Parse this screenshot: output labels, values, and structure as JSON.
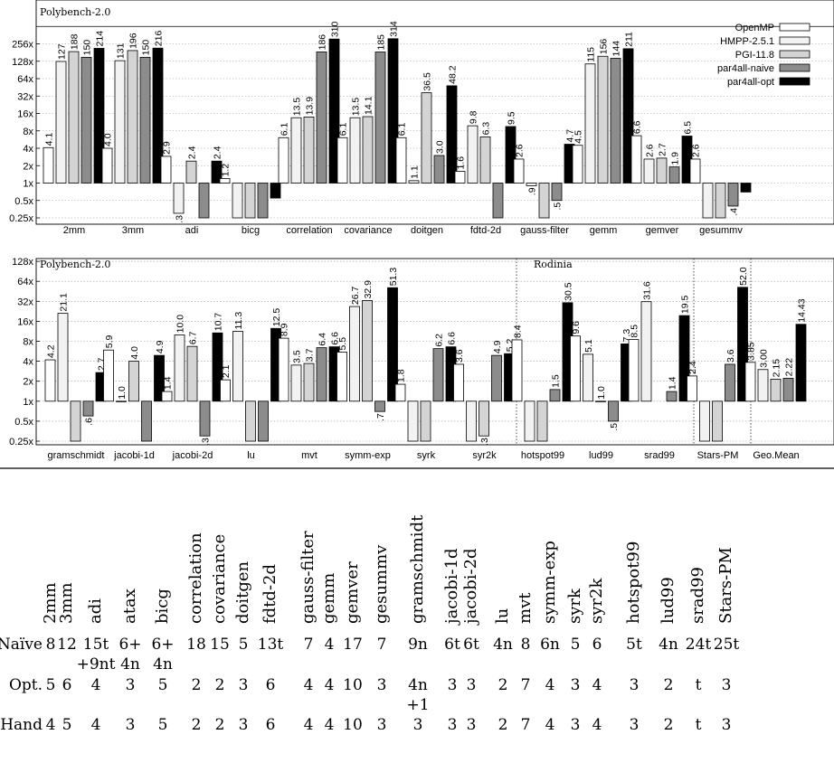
{
  "chart_data": [
    {
      "type": "bar",
      "panel_label": "Polybench-2.0",
      "y_scale": "log2",
      "ylim": [
        0.25,
        512
      ],
      "y_ticks": [
        "0.25x",
        "0.5x",
        "1x",
        "2x",
        "4x",
        "8x",
        "16x",
        "32x",
        "64x",
        "128x",
        "256x"
      ],
      "legend_position": "top-right",
      "categories": [
        "2mm",
        "3mm",
        "adi",
        "bicg",
        "correlation",
        "covariance",
        "doitgen",
        "fdtd-2d",
        "gauss-filter",
        "gemm",
        "gemver",
        "gesummv"
      ],
      "series": [
        {
          "name": "OpenMP",
          "fill": "#ffffff",
          "values": [
            4.1,
            4.0,
            2.9,
            1.2,
            6.1,
            6.1,
            6.1,
            1.6,
            2.6,
            4.5,
            6.6,
            2.6
          ],
          "labels": [
            "4.1",
            "4.0",
            "2.9",
            "1.2",
            "6.1",
            "6.1",
            "6.1",
            "1.6",
            "2.6",
            "4.5",
            "6.6",
            "2.6"
          ]
        },
        {
          "name": "HMPP-2.5.1",
          "fill": "#f2f2f2",
          "values": [
            127,
            131,
            0.3,
            0.25,
            13.5,
            13.5,
            1.1,
            9.8,
            0.9,
            115,
            2.6,
            0.25
          ],
          "labels": [
            "127",
            "131",
            ".3",
            "",
            "13.5",
            "13.5",
            "1.1",
            "9.8",
            ".9",
            "115",
            "2.6",
            ""
          ]
        },
        {
          "name": "PGI-11.8",
          "fill": "#d4d4d4",
          "values": [
            188,
            196,
            2.4,
            0.25,
            13.9,
            14.1,
            36.5,
            6.3,
            0.25,
            156,
            2.7,
            0.25
          ],
          "labels": [
            "188",
            "196",
            "2.4",
            "",
            "13.9",
            "14.1",
            "36.5",
            "6.3",
            "",
            "156",
            "2.7",
            ""
          ]
        },
        {
          "name": "par4all-naive",
          "fill": "#8c8c8c",
          "values": [
            150,
            150,
            0.25,
            0.25,
            186,
            185,
            3.0,
            0.25,
            0.5,
            144,
            1.9,
            0.4
          ],
          "labels": [
            "150",
            "150",
            "",
            "",
            "186",
            "185",
            "3.0",
            "",
            ".5",
            "144",
            "1.9",
            ".4"
          ]
        },
        {
          "name": "par4all-opt",
          "fill": "#000000",
          "values": [
            214,
            216,
            2.4,
            0.55,
            310,
            314,
            48.2,
            9.5,
            4.7,
            211,
            6.5,
            0.7
          ],
          "labels": [
            "214",
            "216",
            "2.4",
            "",
            "310",
            "314",
            "48.2",
            "9.5",
            "4.7",
            "211",
            "6.5",
            ""
          ]
        }
      ]
    },
    {
      "type": "bar",
      "panel_labels": [
        "Polybench-2.0",
        "Rodinia"
      ],
      "y_scale": "log2",
      "ylim": [
        0.25,
        128
      ],
      "y_ticks": [
        "0.25x",
        "0.5x",
        "1x",
        "2x",
        "4x",
        "8x",
        "16x",
        "32x",
        "64x",
        "128x"
      ],
      "categories": [
        "gramschmidt",
        "jacobi-1d",
        "jacobi-2d",
        "lu",
        "mvt",
        "symm-exp",
        "syrk",
        "syr2k",
        "hotspot99",
        "lud99",
        "srad99",
        "Stars-PM",
        "Geo.Mean"
      ],
      "series": [
        {
          "name": "OpenMP",
          "fill": "#ffffff",
          "values": [
            4.2,
            5.9,
            1.4,
            2.1,
            8.9,
            5.5,
            1.8,
            3.6,
            8.4,
            9.6,
            8.5,
            2.4,
            3.85
          ],
          "labels": [
            "4.2",
            "5.9",
            "1.4",
            "2.1",
            "8.9",
            "5.5",
            "1.8",
            "3.6",
            "8.4",
            "9.6",
            "8.5",
            "2.4",
            "3.85"
          ]
        },
        {
          "name": "HMPP-2.5.1",
          "fill": "#f2f2f2",
          "values": [
            21.1,
            1.0,
            10.0,
            11.3,
            3.5,
            26.7,
            0.25,
            0.25,
            0.25,
            5.1,
            31.6,
            0.25,
            3.0
          ],
          "labels": [
            "21.1",
            "1.0",
            "10.0",
            "11.3",
            "3.5",
            "26.7",
            "",
            "",
            "",
            "5.1",
            "31.6",
            "",
            "3.00"
          ]
        },
        {
          "name": "PGI-11.8",
          "fill": "#d4d4d4",
          "values": [
            0.25,
            4.0,
            6.7,
            0.25,
            3.7,
            32.9,
            0.25,
            0.3,
            0.25,
            1.0,
            0,
            0.25,
            2.15
          ],
          "labels": [
            "",
            "4.0",
            "6.7",
            "",
            "3.7",
            "32.9",
            "",
            ".3",
            "",
            "1.0",
            "",
            "",
            "2.15"
          ]
        },
        {
          "name": "par4all-naive",
          "fill": "#8c8c8c",
          "values": [
            0.6,
            0.25,
            0.3,
            0.25,
            6.4,
            0.7,
            6.2,
            4.9,
            1.5,
            0.5,
            1.4,
            3.6,
            2.22
          ],
          "labels": [
            ".6",
            "",
            ".3",
            "",
            "6.4",
            ".7",
            "6.2",
            "4.9",
            "1.5",
            ".5",
            "1.4",
            "3.6",
            "2.22"
          ]
        },
        {
          "name": "par4all-opt",
          "fill": "#000000",
          "values": [
            2.7,
            4.9,
            10.7,
            12.5,
            6.6,
            51.3,
            6.6,
            5.2,
            30.5,
            7.3,
            19.5,
            52.0,
            14.43
          ],
          "labels": [
            "2.7",
            "4.9",
            "10.7",
            "12.5",
            "6.6",
            "51.3",
            "6.6",
            "5.2",
            "30.5",
            "7.3",
            "19.5",
            "52.0",
            "14.43"
          ]
        }
      ]
    }
  ],
  "table": {
    "columns": [
      "2mm",
      "3mm",
      "adi",
      "atax",
      "bicg",
      "correlation",
      "covariance",
      "doitgen",
      "fdtd-2d",
      "gauss-filter",
      "gemm",
      "gemver",
      "gesummv",
      "gramschmidt",
      "jacobi-1d",
      "jacobi-2d",
      "lu",
      "mvt",
      "symm-exp",
      "syrk",
      "syr2k",
      "hotspot99",
      "lud99",
      "srad99",
      "Stars-PM"
    ],
    "rows": [
      {
        "label": "Naïve",
        "cells": [
          [
            "8"
          ],
          [
            "12"
          ],
          [
            "15t",
            "+9nt"
          ],
          [
            "6+",
            "4n"
          ],
          [
            "6+",
            "4n"
          ],
          [
            "18"
          ],
          [
            "15"
          ],
          [
            "5"
          ],
          [
            "13t"
          ],
          [
            "7"
          ],
          [
            "4"
          ],
          [
            "17"
          ],
          [
            "7"
          ],
          [
            "9n"
          ],
          [
            "6t"
          ],
          [
            "6t"
          ],
          [
            "4n"
          ],
          [
            "8"
          ],
          [
            "6n"
          ],
          [
            "5"
          ],
          [
            "6"
          ],
          [
            "5t"
          ],
          [
            "4n"
          ],
          [
            "24t"
          ],
          [
            "25t"
          ]
        ]
      },
      {
        "label": "Opt.",
        "cells": [
          [
            "5"
          ],
          [
            "6"
          ],
          [
            "4"
          ],
          [
            "3"
          ],
          [
            "5"
          ],
          [
            "2"
          ],
          [
            "2"
          ],
          [
            "3"
          ],
          [
            "6"
          ],
          [
            "4"
          ],
          [
            "4"
          ],
          [
            "10"
          ],
          [
            "3"
          ],
          [
            "4n",
            "+1"
          ],
          [
            "3"
          ],
          [
            "3"
          ],
          [
            "2"
          ],
          [
            "7"
          ],
          [
            "4"
          ],
          [
            "3"
          ],
          [
            "4"
          ],
          [
            "3"
          ],
          [
            "2"
          ],
          [
            "t"
          ],
          [
            "3"
          ]
        ]
      },
      {
        "label": "Hand",
        "cells": [
          [
            "4"
          ],
          [
            "5"
          ],
          [
            "4"
          ],
          [
            "3"
          ],
          [
            "5"
          ],
          [
            "2"
          ],
          [
            "2"
          ],
          [
            "3"
          ],
          [
            "6"
          ],
          [
            "4"
          ],
          [
            "4"
          ],
          [
            "10"
          ],
          [
            "3"
          ],
          [
            "3"
          ],
          [
            "3"
          ],
          [
            "3"
          ],
          [
            "2"
          ],
          [
            "7"
          ],
          [
            "4"
          ],
          [
            "3"
          ],
          [
            "4"
          ],
          [
            "3"
          ],
          [
            "2"
          ],
          [
            "t"
          ],
          [
            "3"
          ]
        ]
      }
    ]
  }
}
